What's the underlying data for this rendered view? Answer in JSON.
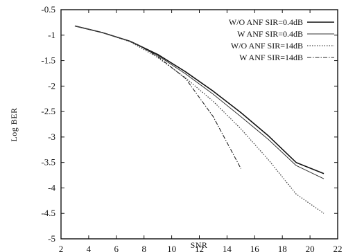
{
  "chart_data": {
    "type": "line",
    "title": "",
    "xlabel": "SNR",
    "ylabel": "Log BER",
    "xlim": [
      2,
      22
    ],
    "ylim": [
      -5,
      -0.5
    ],
    "xticks": [
      2,
      4,
      6,
      8,
      10,
      12,
      14,
      16,
      18,
      20,
      22
    ],
    "yticks": [
      -0.5,
      -1,
      -1.5,
      -2,
      -2.5,
      -3,
      -3.5,
      -4,
      -4.5,
      -5
    ],
    "xtick_labels": [
      "2",
      "4",
      "6",
      "8",
      "10",
      "12",
      "14",
      "16",
      "18",
      "20",
      "22"
    ],
    "ytick_labels": [
      "-0.5",
      "-1",
      "-1.5",
      "-2",
      "-2.5",
      "-3",
      "-3.5",
      "-4",
      "-4.5",
      "-5"
    ],
    "grid": false,
    "legend_position": "top-right",
    "series": [
      {
        "name": "W/O ANF SIR=0.4dB",
        "style": "solid",
        "color": "#111111",
        "x": [
          3,
          5,
          7,
          9,
          11,
          13,
          15,
          17,
          19,
          21
        ],
        "y": [
          -0.82,
          -0.95,
          -1.12,
          -1.38,
          -1.72,
          -2.1,
          -2.52,
          -2.98,
          -3.5,
          -3.72
        ]
      },
      {
        "name": "W ANF SIR=0.4dB",
        "style": "solid-thin",
        "color": "#333333",
        "x": [
          3,
          5,
          7,
          9,
          11,
          13,
          15,
          17,
          19,
          21
        ],
        "y": [
          -0.82,
          -0.95,
          -1.12,
          -1.4,
          -1.76,
          -2.16,
          -2.6,
          -3.05,
          -3.56,
          -3.82
        ]
      },
      {
        "name": "W/O ANF SIR=14dB",
        "style": "dotted",
        "color": "#444444",
        "x": [
          3,
          5,
          7,
          9,
          11,
          13,
          15,
          17,
          19,
          21
        ],
        "y": [
          -0.82,
          -0.95,
          -1.13,
          -1.44,
          -1.84,
          -2.3,
          -2.84,
          -3.45,
          -4.12,
          -4.5
        ]
      },
      {
        "name": "W ANF SIR=14dB",
        "style": "dash-dot",
        "color": "#222222",
        "x": [
          7.5,
          9,
          11,
          13,
          15
        ],
        "y": [
          -1.18,
          -1.42,
          -1.85,
          -2.6,
          -3.62
        ]
      }
    ]
  }
}
